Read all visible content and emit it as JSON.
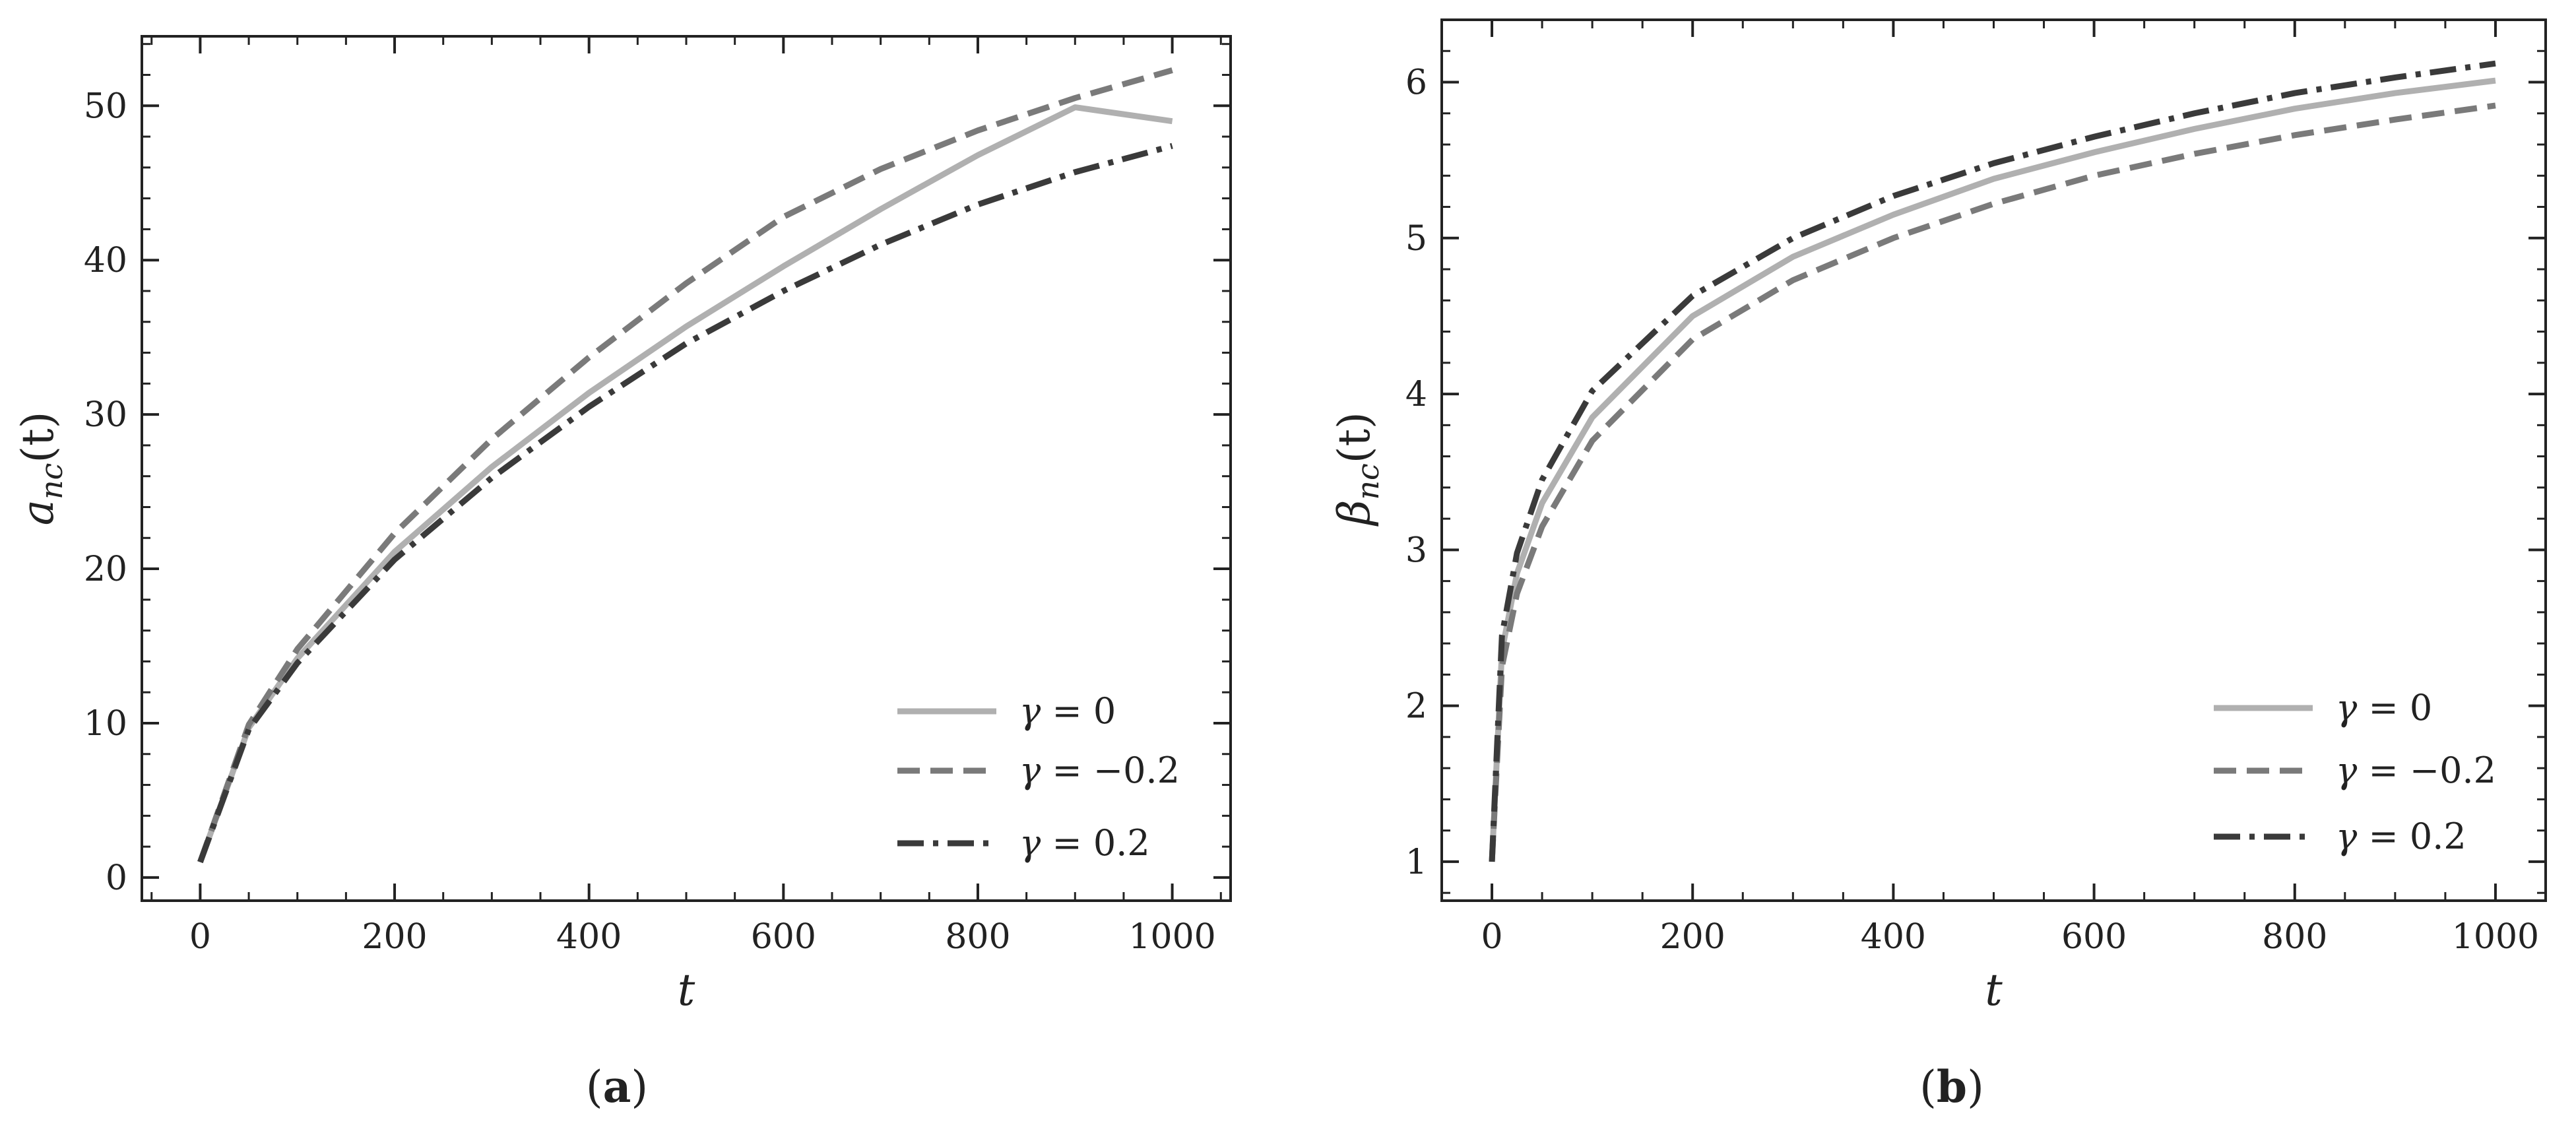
{
  "chart_data": [
    {
      "type": "line",
      "caption": "a",
      "xlabel": "t",
      "ylabel": {
        "base": "a",
        "sub": "nc",
        "arg": "(t)"
      },
      "xlim": [
        -60,
        1060
      ],
      "ylim": [
        -1.5,
        54.5
      ],
      "xticks": [
        0,
        200,
        400,
        600,
        800,
        1000
      ],
      "yticks": [
        0,
        10,
        20,
        30,
        40,
        50
      ],
      "grid": false,
      "legend_position": "lower right",
      "x": [
        0,
        50,
        100,
        200,
        300,
        400,
        500,
        600,
        700,
        800,
        900,
        1000
      ],
      "series": [
        {
          "label": {
            "sym": "γ",
            "rel": " = ",
            "val": "0"
          },
          "color": "#b0b0b0",
          "dash": "solid",
          "values": [
            1.0,
            9.7,
            14.2,
            21.1,
            26.6,
            31.4,
            35.7,
            39.6,
            43.3,
            46.8,
            49.9,
            49.0
          ]
        },
        {
          "label": {
            "sym": "γ",
            "rel": " = ",
            "val": "−0.2"
          },
          "color": "#7a7a7a",
          "dash": "dashed",
          "values": [
            1.0,
            9.9,
            14.8,
            22.3,
            28.4,
            33.7,
            38.5,
            42.8,
            45.9,
            48.4,
            50.5,
            52.3
          ]
        },
        {
          "label": {
            "sym": "γ",
            "rel": " = ",
            "val": "0.2"
          },
          "color": "#3a3a3a",
          "dash": "dashdot",
          "values": [
            1.0,
            9.6,
            13.9,
            20.6,
            25.9,
            30.5,
            34.6,
            38.0,
            41.0,
            43.6,
            45.7,
            47.4
          ]
        }
      ]
    },
    {
      "type": "line",
      "caption": "b",
      "xlabel": "t",
      "ylabel": {
        "base": "β",
        "sub": "nc",
        "arg": "(t)"
      },
      "xlim": [
        -50,
        1050
      ],
      "ylim": [
        0.75,
        6.4
      ],
      "xticks": [
        0,
        200,
        400,
        600,
        800,
        1000
      ],
      "yticks": [
        1,
        2,
        3,
        4,
        5,
        6
      ],
      "grid": false,
      "legend_position": "lower right",
      "x": [
        0,
        10,
        25,
        50,
        100,
        200,
        300,
        400,
        500,
        600,
        700,
        800,
        900,
        1000
      ],
      "series": [
        {
          "label": {
            "sym": "γ",
            "rel": " = ",
            "val": "0"
          },
          "color": "#b0b0b0",
          "dash": "solid",
          "values": [
            1.0,
            2.35,
            2.85,
            3.3,
            3.85,
            4.5,
            4.88,
            5.15,
            5.38,
            5.55,
            5.7,
            5.83,
            5.93,
            6.01
          ]
        },
        {
          "label": {
            "sym": "γ",
            "rel": " = ",
            "val": "−0.2"
          },
          "color": "#7a7a7a",
          "dash": "dashed",
          "values": [
            1.0,
            2.25,
            2.72,
            3.15,
            3.7,
            4.35,
            4.73,
            5.0,
            5.22,
            5.4,
            5.54,
            5.66,
            5.76,
            5.85
          ]
        },
        {
          "label": {
            "sym": "γ",
            "rel": " = ",
            "val": "0.2"
          },
          "color": "#3a3a3a",
          "dash": "dashdot",
          "values": [
            1.0,
            2.45,
            2.98,
            3.45,
            4.02,
            4.63,
            5.0,
            5.27,
            5.48,
            5.65,
            5.8,
            5.93,
            6.03,
            6.12
          ]
        }
      ]
    }
  ]
}
